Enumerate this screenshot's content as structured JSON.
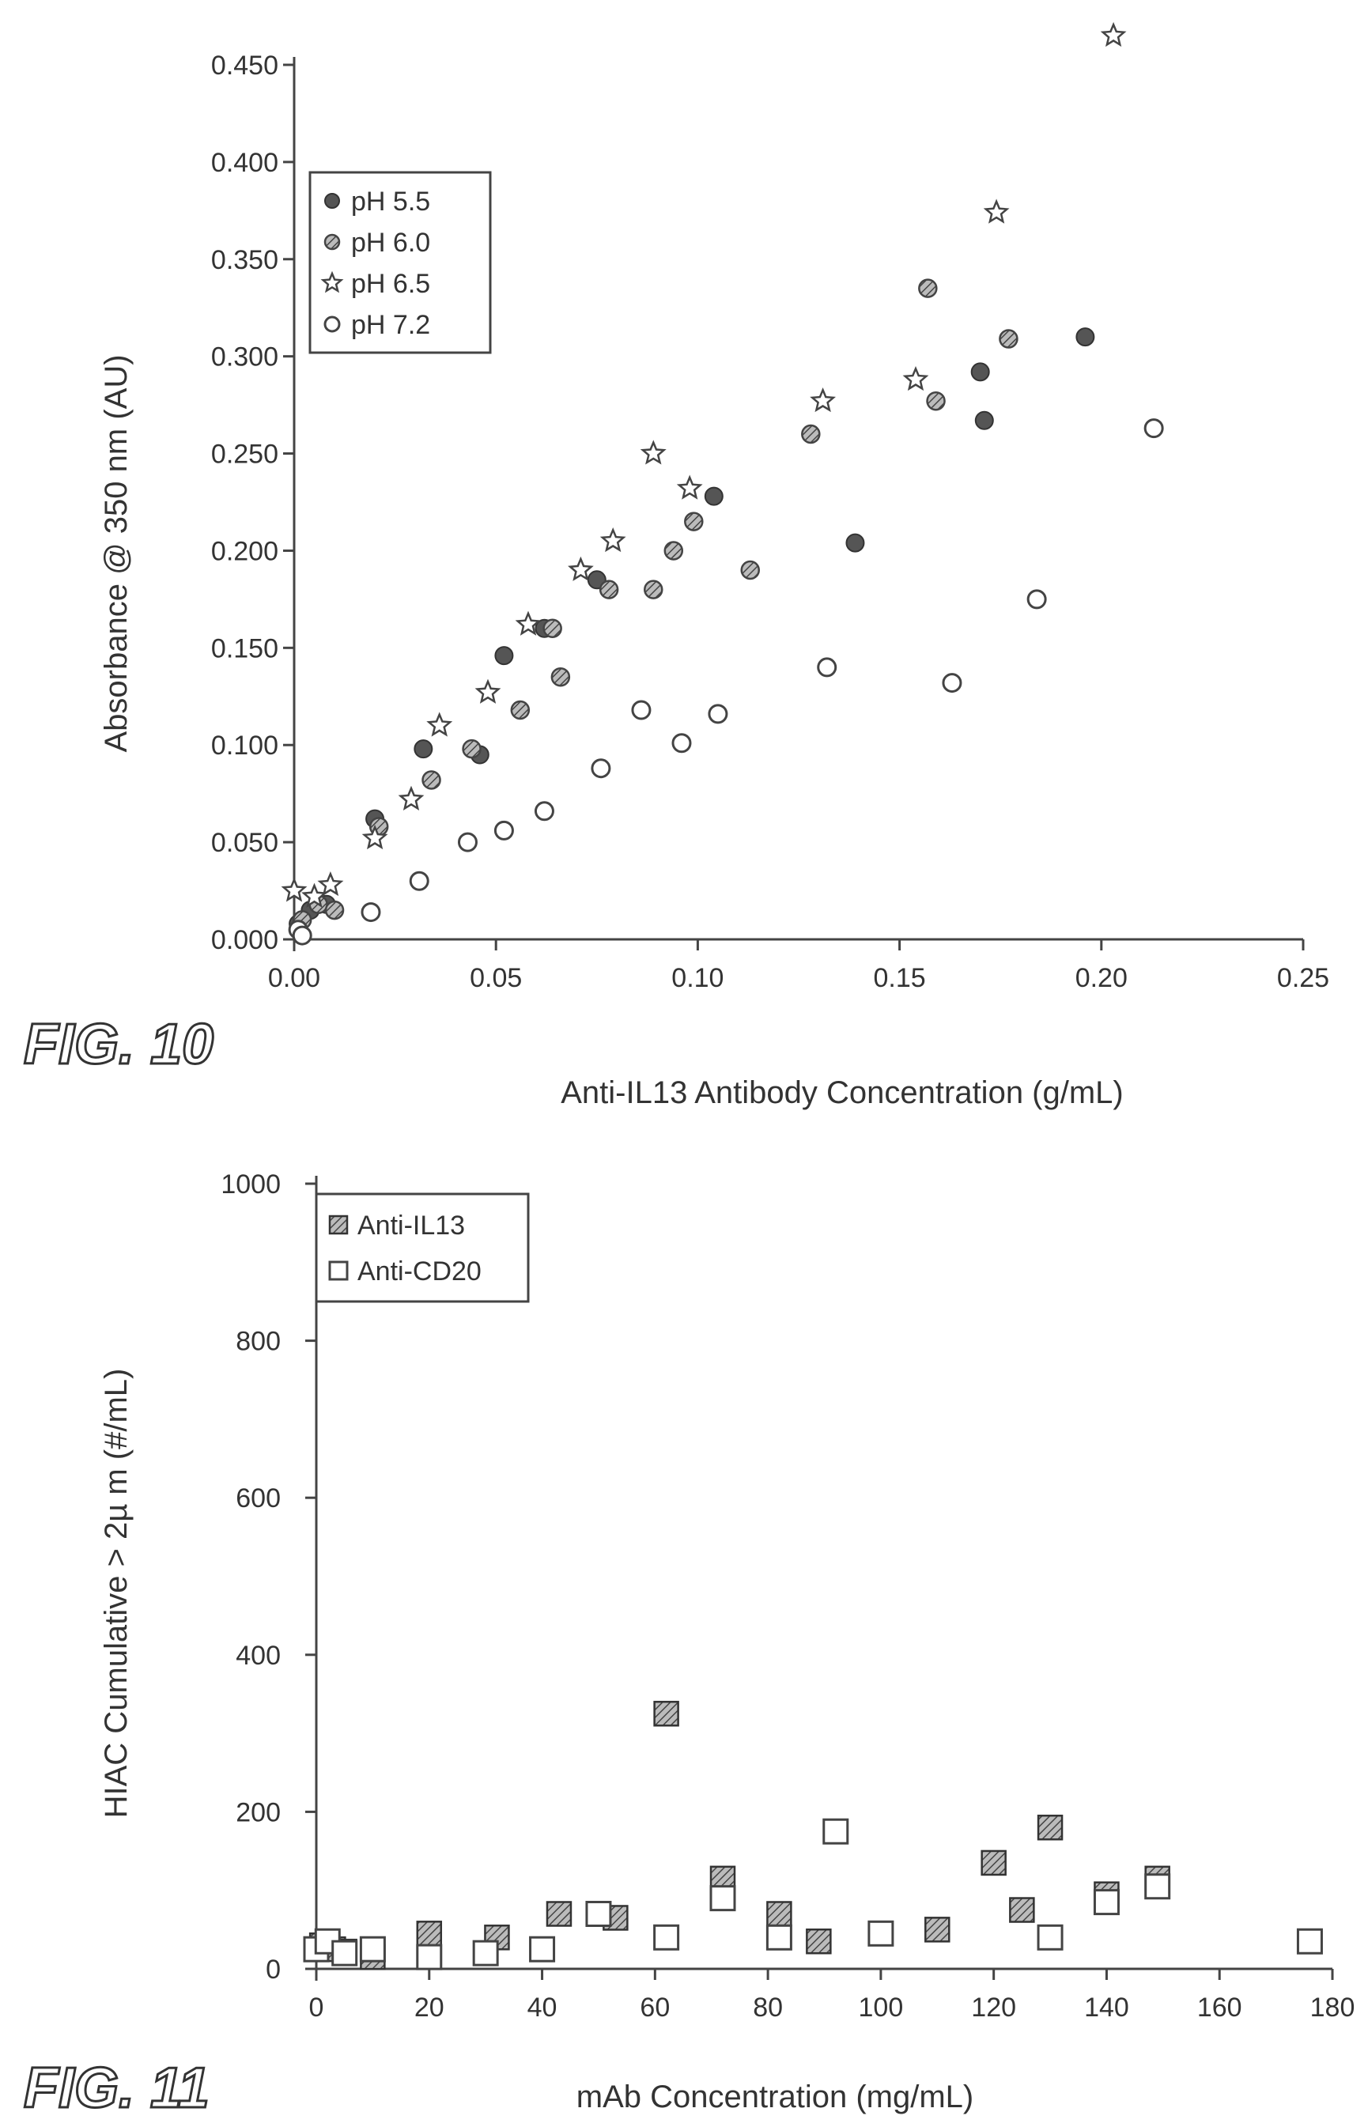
{
  "figures": {
    "fig10_label": "FIG. 10",
    "fig11_label": "FIG. 11"
  },
  "chart_data": [
    {
      "type": "scatter",
      "xlabel": "Anti-IL13 Antibody Concentration (g/mL)",
      "ylabel": "Absorbance @ 350 nm (AU)",
      "xlim": [
        0,
        0.25
      ],
      "ylim": [
        0,
        0.45
      ],
      "x_ticks": [
        "0.00",
        "0.05",
        "0.10",
        "0.15",
        "0.20",
        "0.25"
      ],
      "y_ticks": [
        "0.000",
        "0.050",
        "0.100",
        "0.150",
        "0.200",
        "0.250",
        "0.300",
        "0.350",
        "0.400",
        "0.450"
      ],
      "legend_position": "top-left",
      "series": [
        {
          "name": "pH 5.5",
          "marker": "filled-circle",
          "color": "#555555",
          "points": [
            [
              0.001,
              0.008
            ],
            [
              0.004,
              0.015
            ],
            [
              0.008,
              0.018
            ],
            [
              0.02,
              0.062
            ],
            [
              0.032,
              0.098
            ],
            [
              0.046,
              0.095
            ],
            [
              0.052,
              0.146
            ],
            [
              0.062,
              0.16
            ],
            [
              0.075,
              0.185
            ],
            [
              0.104,
              0.228
            ],
            [
              0.139,
              0.204
            ],
            [
              0.17,
              0.292
            ],
            [
              0.171,
              0.267
            ],
            [
              0.196,
              0.31
            ]
          ]
        },
        {
          "name": "pH 6.0",
          "marker": "hatched-circle",
          "color": "#888888",
          "points": [
            [
              0.002,
              0.01
            ],
            [
              0.006,
              0.018
            ],
            [
              0.01,
              0.015
            ],
            [
              0.021,
              0.058
            ],
            [
              0.034,
              0.082
            ],
            [
              0.044,
              0.098
            ],
            [
              0.056,
              0.118
            ],
            [
              0.066,
              0.135
            ],
            [
              0.078,
              0.18
            ],
            [
              0.089,
              0.18
            ],
            [
              0.094,
              0.2
            ],
            [
              0.099,
              0.215
            ],
            [
              0.113,
              0.19
            ],
            [
              0.128,
              0.26
            ],
            [
              0.157,
              0.335
            ],
            [
              0.159,
              0.277
            ],
            [
              0.177,
              0.309
            ],
            [
              0.064,
              0.16
            ]
          ]
        },
        {
          "name": "pH 6.5",
          "marker": "star",
          "color": "#555555",
          "points": [
            [
              0.0,
              0.025
            ],
            [
              0.005,
              0.022
            ],
            [
              0.009,
              0.028
            ],
            [
              0.02,
              0.052
            ],
            [
              0.029,
              0.072
            ],
            [
              0.036,
              0.11
            ],
            [
              0.048,
              0.127
            ],
            [
              0.058,
              0.162
            ],
            [
              0.071,
              0.19
            ],
            [
              0.079,
              0.205
            ],
            [
              0.089,
              0.25
            ],
            [
              0.098,
              0.232
            ],
            [
              0.131,
              0.277
            ],
            [
              0.154,
              0.288
            ],
            [
              0.174,
              0.374
            ],
            [
              0.203,
              0.465
            ]
          ]
        },
        {
          "name": "pH 7.2",
          "marker": "open-circle",
          "color": "#555555",
          "points": [
            [
              0.001,
              0.005
            ],
            [
              0.002,
              0.002
            ],
            [
              0.019,
              0.014
            ],
            [
              0.031,
              0.03
            ],
            [
              0.043,
              0.05
            ],
            [
              0.052,
              0.056
            ],
            [
              0.062,
              0.066
            ],
            [
              0.076,
              0.088
            ],
            [
              0.086,
              0.118
            ],
            [
              0.096,
              0.101
            ],
            [
              0.105,
              0.116
            ],
            [
              0.132,
              0.14
            ],
            [
              0.163,
              0.132
            ],
            [
              0.184,
              0.175
            ],
            [
              0.213,
              0.263
            ]
          ]
        }
      ]
    },
    {
      "type": "scatter",
      "xlabel": "mAb Concentration (mg/mL)",
      "ylabel": "HIAC Cumulative > 2µ m (#/mL)",
      "xlim": [
        0,
        180
      ],
      "ylim": [
        0,
        1000
      ],
      "x_ticks": [
        "0",
        "20",
        "40",
        "60",
        "80",
        "100",
        "120",
        "140",
        "160",
        "180"
      ],
      "y_ticks": [
        "0",
        "200",
        "400",
        "600",
        "800",
        "1000"
      ],
      "legend_position": "top-left",
      "series": [
        {
          "name": "Anti-IL13",
          "marker": "filled-square",
          "color": "#555555",
          "points": [
            [
              1,
              30
            ],
            [
              3,
              25
            ],
            [
              5,
              22
            ],
            [
              10,
              15
            ],
            [
              20,
              45
            ],
            [
              32,
              40
            ],
            [
              43,
              70
            ],
            [
              53,
              65
            ],
            [
              62,
              325
            ],
            [
              72,
              115
            ],
            [
              82,
              70
            ],
            [
              89,
              35
            ],
            [
              110,
              50
            ],
            [
              120,
              135
            ],
            [
              125,
              75
            ],
            [
              130,
              180
            ],
            [
              140,
              95
            ],
            [
              149,
              115
            ]
          ]
        },
        {
          "name": "Anti-CD20",
          "marker": "open-square",
          "color": "#555555",
          "points": [
            [
              0,
              25
            ],
            [
              2,
              35
            ],
            [
              5,
              20
            ],
            [
              10,
              25
            ],
            [
              20,
              15
            ],
            [
              30,
              20
            ],
            [
              40,
              25
            ],
            [
              50,
              70
            ],
            [
              62,
              40
            ],
            [
              72,
              90
            ],
            [
              82,
              40
            ],
            [
              92,
              175
            ],
            [
              100,
              45
            ],
            [
              130,
              40
            ],
            [
              140,
              85
            ],
            [
              149,
              105
            ],
            [
              176,
              35
            ]
          ]
        }
      ]
    }
  ]
}
